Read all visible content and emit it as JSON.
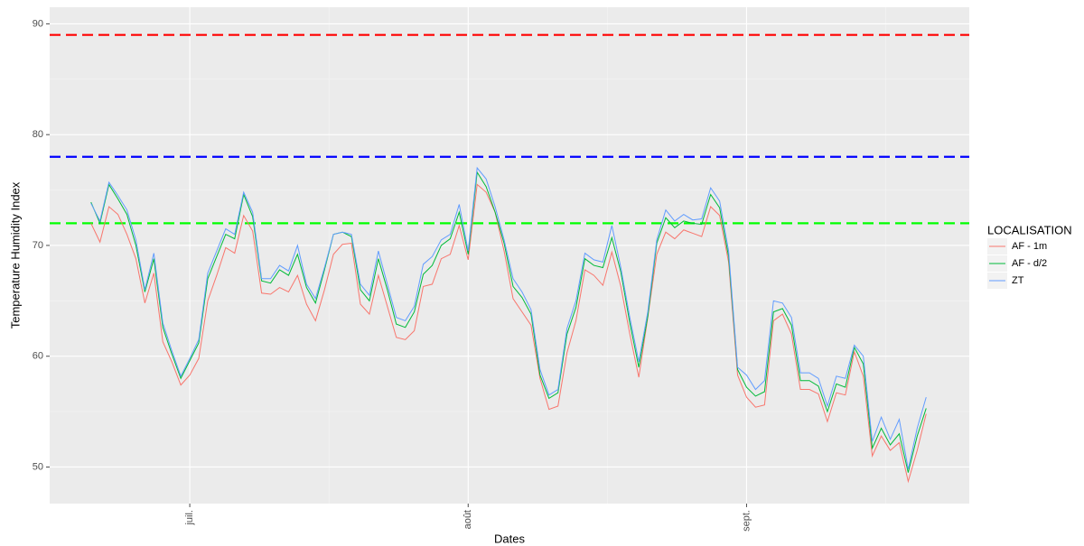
{
  "chart_data": {
    "type": "line",
    "x_label": "Dates",
    "y_label": "Temperature Humidity Index",
    "legend_title": "LOCALISATION",
    "legend_position": "right",
    "grid": true,
    "x": [
      -11,
      -10,
      -9,
      -8,
      -7,
      -6,
      -5,
      -4,
      -3,
      -2,
      -1,
      0,
      1,
      2,
      3,
      4,
      5,
      6,
      7,
      8,
      9,
      10,
      11,
      12,
      13,
      14,
      15,
      16,
      17,
      18,
      19,
      20,
      21,
      22,
      23,
      24,
      25,
      26,
      27,
      28,
      29,
      30,
      31,
      32,
      33,
      34,
      35,
      36,
      37,
      38,
      39,
      40,
      41,
      42,
      43,
      44,
      45,
      46,
      47,
      48,
      49,
      50,
      51,
      52,
      53,
      54,
      55,
      56,
      57,
      58,
      59,
      60,
      61,
      62,
      63,
      64,
      65,
      66,
      67,
      68,
      69,
      70,
      71,
      72,
      73,
      74,
      75,
      76,
      77,
      78,
      79,
      80,
      81,
      82
    ],
    "xlim": [
      -15.6,
      86.8
    ],
    "xticks": [
      {
        "value": 0,
        "label": "juil."
      },
      {
        "value": 31,
        "label": "août"
      },
      {
        "value": 62,
        "label": "sept."
      }
    ],
    "ylim": [
      46.7,
      91.5
    ],
    "yticks": [
      50,
      60,
      70,
      80,
      90
    ],
    "series": [
      {
        "name": "AF - 1m",
        "color": "#F8766D",
        "values": [
          72.0,
          70.3,
          73.5,
          72.8,
          71.0,
          68.8,
          64.8,
          67.5,
          61.3,
          59.5,
          57.4,
          58.3,
          59.8,
          65.0,
          67.3,
          69.8,
          69.3,
          72.7,
          71.3,
          65.7,
          65.6,
          66.2,
          65.8,
          67.3,
          64.7,
          63.2,
          66.0,
          69.2,
          70.1,
          70.2,
          64.7,
          63.8,
          67.3,
          64.5,
          61.7,
          61.5,
          62.3,
          66.3,
          66.5,
          68.8,
          69.2,
          71.8,
          68.7,
          75.5,
          74.8,
          73.0,
          69.5,
          65.2,
          64.0,
          62.8,
          58.0,
          55.2,
          55.5,
          60.3,
          63.2,
          67.8,
          67.3,
          66.4,
          69.4,
          66.3,
          62.0,
          58.1,
          63.5,
          69.2,
          71.2,
          70.6,
          71.4,
          71.1,
          70.8,
          73.5,
          72.7,
          68.5,
          58.3,
          56.3,
          55.4,
          55.6,
          63.2,
          63.8,
          62.0,
          57.0,
          57.0,
          56.6,
          54.1,
          56.7,
          56.5,
          60.4,
          58.2,
          51.0,
          52.8,
          51.5,
          52.2,
          48.7,
          51.5,
          54.8
        ]
      },
      {
        "name": "AF - d/2",
        "color": "#00BA38",
        "values": [
          73.9,
          72.0,
          75.5,
          74.2,
          72.8,
          70.0,
          65.8,
          68.8,
          62.6,
          60.2,
          58.0,
          59.6,
          61.2,
          67.0,
          69.0,
          71.0,
          70.6,
          74.6,
          72.6,
          66.8,
          66.6,
          67.8,
          67.3,
          69.2,
          66.2,
          64.8,
          67.8,
          71.0,
          71.2,
          70.8,
          66.0,
          65.0,
          68.8,
          66.0,
          62.9,
          62.6,
          64.0,
          67.4,
          68.2,
          70.0,
          70.6,
          73.0,
          69.2,
          76.6,
          75.3,
          73.0,
          70.2,
          66.3,
          65.3,
          63.8,
          58.3,
          56.2,
          56.7,
          62.0,
          64.4,
          68.8,
          68.2,
          68.0,
          70.7,
          67.6,
          63.0,
          59.0,
          63.6,
          70.2,
          72.5,
          71.6,
          72.2,
          72.0,
          71.9,
          74.6,
          73.4,
          69.0,
          58.8,
          57.2,
          56.4,
          56.8,
          64.0,
          64.3,
          62.8,
          57.8,
          57.8,
          57.3,
          55.0,
          57.5,
          57.2,
          60.8,
          59.3,
          51.7,
          53.5,
          52.0,
          53.0,
          49.5,
          52.8,
          55.3
        ]
      },
      {
        "name": "ZT",
        "color": "#619CFF",
        "values": [
          73.8,
          72.2,
          75.7,
          74.5,
          73.2,
          70.5,
          66.0,
          69.3,
          63.0,
          60.5,
          58.2,
          59.8,
          61.5,
          67.5,
          69.5,
          71.5,
          71.0,
          74.8,
          73.0,
          67.0,
          67.0,
          68.2,
          67.7,
          70.0,
          66.5,
          65.2,
          68.0,
          71.0,
          71.2,
          71.0,
          66.5,
          65.5,
          69.5,
          66.5,
          63.5,
          63.2,
          64.5,
          68.3,
          69.0,
          70.5,
          71.0,
          73.7,
          69.5,
          77.0,
          76.0,
          73.5,
          70.5,
          67.0,
          65.8,
          64.2,
          58.8,
          56.5,
          57.0,
          62.5,
          65.0,
          69.3,
          68.7,
          68.5,
          71.8,
          68.0,
          63.5,
          59.5,
          64.0,
          70.5,
          73.2,
          72.2,
          72.8,
          72.3,
          72.4,
          75.2,
          74.0,
          69.5,
          59.0,
          58.3,
          57.0,
          57.8,
          65.0,
          64.8,
          63.5,
          58.5,
          58.5,
          58.0,
          55.5,
          58.2,
          58.0,
          61.0,
          60.0,
          52.3,
          54.5,
          52.5,
          54.3,
          49.8,
          53.5,
          56.3
        ]
      }
    ],
    "reference_lines": [
      {
        "value": 89,
        "color": "#ff0000"
      },
      {
        "value": 78,
        "color": "#0000ff"
      },
      {
        "value": 72,
        "color": "#00ff00"
      }
    ]
  }
}
